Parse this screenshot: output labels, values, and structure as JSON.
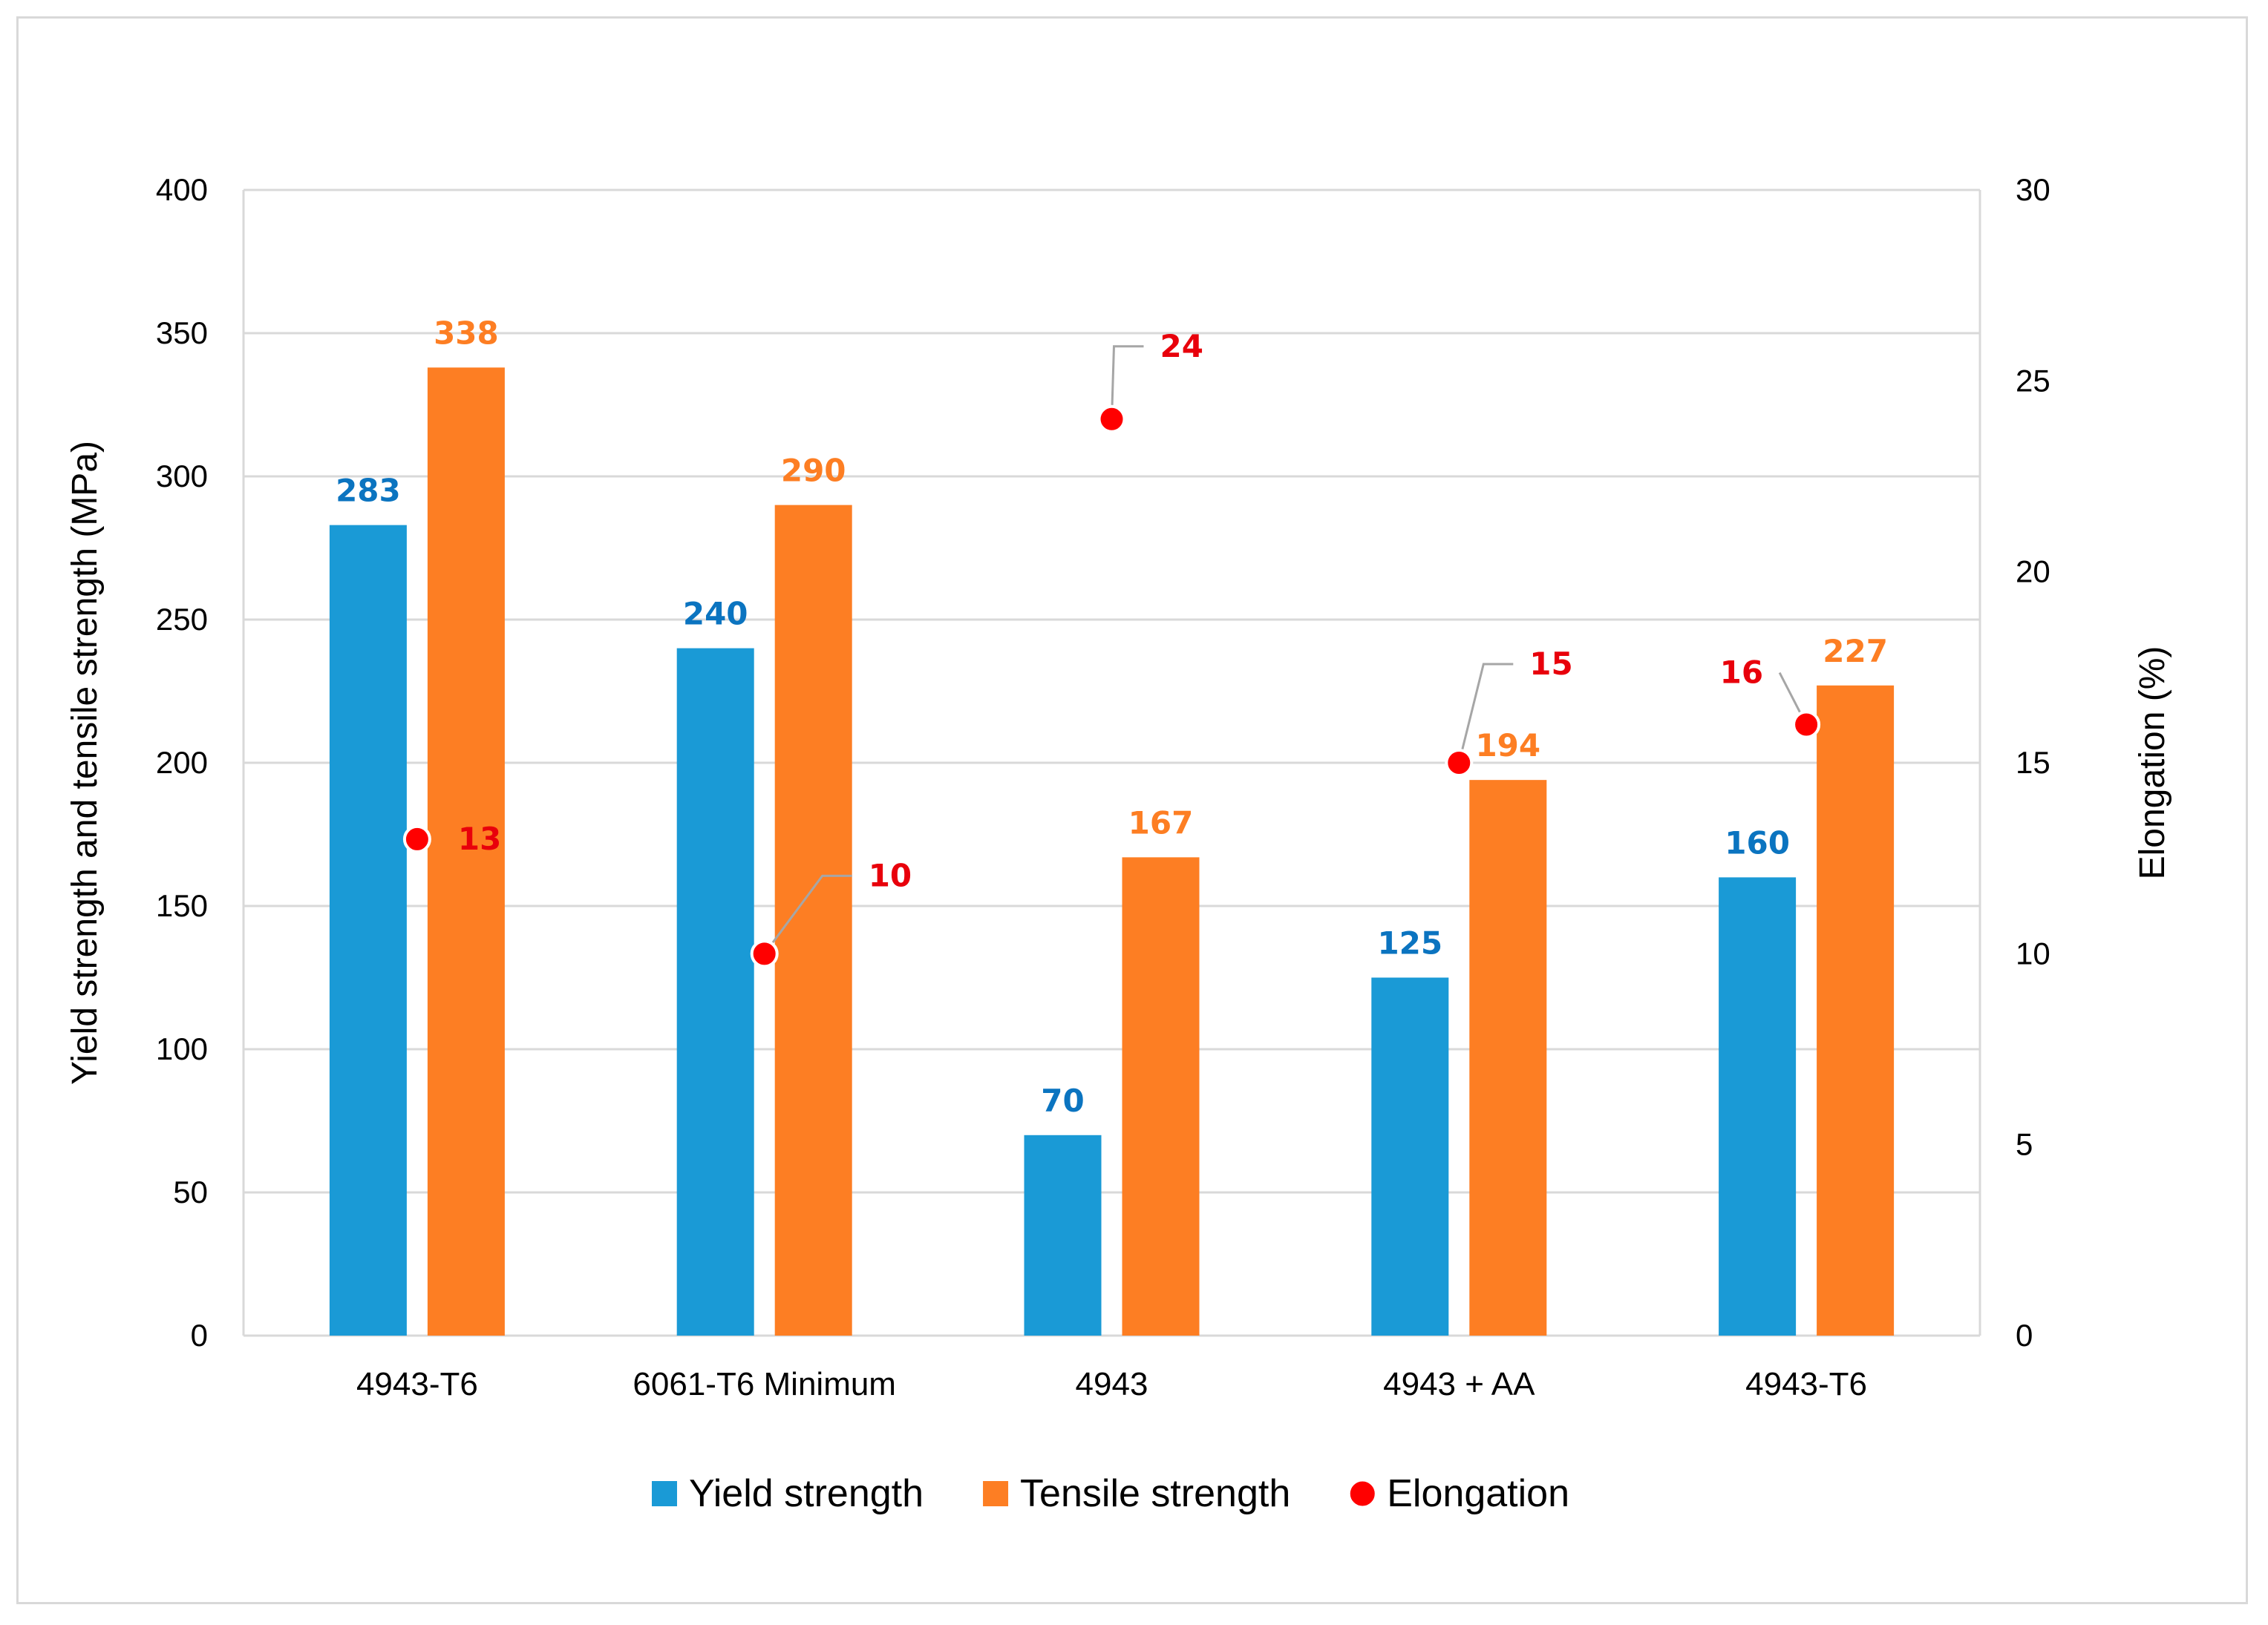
{
  "chart_data": {
    "type": "bar",
    "categories": [
      "4943-T6",
      "6061-T6 Minimum",
      "4943",
      "4943 + AA",
      "4943-T6"
    ],
    "series": [
      {
        "name": "Yield strength",
        "values": [
          283,
          240,
          70,
          125,
          160
        ],
        "color": "#1a9ad6",
        "axis": "left",
        "kind": "bar"
      },
      {
        "name": "Tensile strength",
        "values": [
          338,
          290,
          167,
          194,
          227
        ],
        "color": "#fd7e23",
        "axis": "left",
        "kind": "bar"
      },
      {
        "name": "Elongation",
        "values": [
          13,
          10,
          24,
          15,
          16
        ],
        "color": "#ff0000",
        "axis": "right",
        "kind": "scatter"
      }
    ],
    "ylabel": "Yield strength and tensile strength (MPa)",
    "y2label": "Elongation (%)",
    "ylim": [
      0,
      400
    ],
    "y2lim": [
      0,
      30
    ],
    "yticks": [
      0,
      50,
      100,
      150,
      200,
      250,
      300,
      350,
      400
    ],
    "y2ticks": [
      0,
      5,
      10,
      15,
      20,
      25,
      30
    ],
    "grid": true,
    "legend": "bottom-center",
    "colors": {
      "yield": "#1a9ad6",
      "yield_label": "#0b74c0",
      "tensile": "#fd7e23",
      "tensile_label": "#fd7e23",
      "elongation": "#ff0000",
      "elongation_label": "#e8000b",
      "grid": "#d9d9d9",
      "leader": "#a6a6a6"
    }
  }
}
